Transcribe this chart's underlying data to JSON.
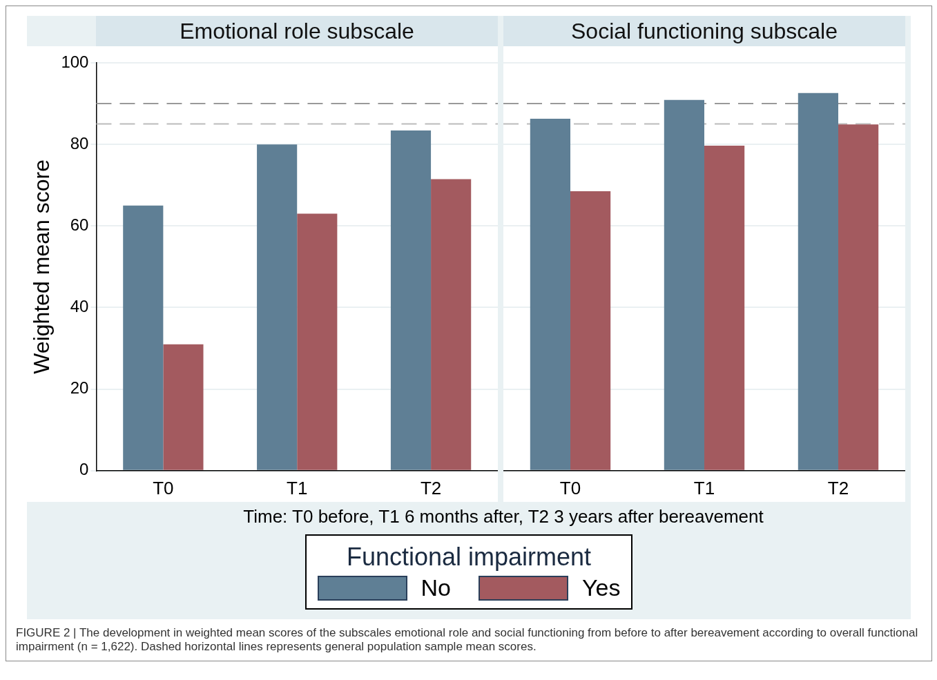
{
  "chart_data": [
    {
      "type": "bar",
      "title": "Emotional role subscale",
      "ylabel": "Weighted mean score",
      "xlabel": "Time: T0 before, T1 6 months after, T2 3 years after bereavement",
      "legend_title": "Functional impairment",
      "legend": "bottom",
      "categories": [
        "T0",
        "T1",
        "T2"
      ],
      "series": [
        {
          "name": "No",
          "color": "#5f7f95",
          "values": [
            65,
            80,
            83.4
          ]
        },
        {
          "name": "Yes",
          "color": "#a35a5f",
          "values": [
            31,
            63,
            71.5
          ]
        }
      ],
      "ylim": [
        0,
        100
      ],
      "yticks": [
        0,
        20,
        40,
        60,
        80,
        100
      ],
      "grid": "y",
      "ref_lines": [
        {
          "axis": "y",
          "value": 90,
          "color": "#999999",
          "line_style": "dashed"
        },
        {
          "axis": "y",
          "value": 85,
          "color": "#bbbbbb",
          "line_style": "dashed"
        }
      ],
      "annotations": [
        "FIGURE 2 | The development in weighted mean scores of the subscales emotional role and social functioning from before to after bereavement according to overall functional impairment (n = 1,622). Dashed horizontal lines represents general population sample mean scores."
      ]
    },
    {
      "type": "bar",
      "title": "Social functioning subscale",
      "categories": [
        "T0",
        "T1",
        "T2"
      ],
      "series": [
        {
          "color": "#5f7f95",
          "values": [
            86.3,
            90.9,
            92.6
          ]
        },
        {
          "color": "#a35a5f",
          "values": [
            68.5,
            79.7,
            84.9
          ]
        }
      ],
      "ylim": [
        0,
        100
      ],
      "yticks": [
        0,
        20,
        40,
        60,
        80,
        100
      ],
      "grid": "y",
      "tick_labels": "x",
      "ref_lines": [
        {
          "axis": "y",
          "value": 90,
          "color": "#999999",
          "line_style": "dashed"
        },
        {
          "axis": "y",
          "value": 85,
          "color": "#bbbbbb",
          "line_style": "dashed"
        }
      ]
    }
  ]
}
